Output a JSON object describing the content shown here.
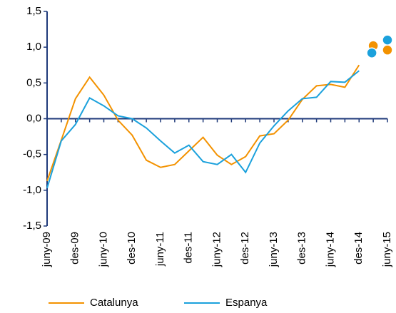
{
  "chart_data": {
    "type": "line",
    "categories": [
      "juny-09",
      null,
      "des-09",
      null,
      "juny-10",
      null,
      "des-10",
      null,
      "juny-11",
      null,
      "des-11",
      null,
      "juny-12",
      null,
      "des-12",
      null,
      "juny-13",
      null,
      "des-13",
      null,
      "juny-14",
      null,
      "des-14",
      null,
      "juny-15"
    ],
    "series": [
      {
        "name": "Catalunya",
        "color": "#f39200",
        "values": [
          -0.87,
          -0.3,
          0.28,
          0.58,
          0.33,
          -0.02,
          -0.23,
          -0.58,
          -0.68,
          -0.64,
          -0.45,
          -0.26,
          -0.51,
          -0.64,
          -0.53,
          -0.24,
          -0.21,
          -0.02,
          0.27,
          0.46,
          0.48,
          0.44,
          0.75,
          null,
          null
        ],
        "dot_values": [
          null,
          null,
          null,
          null,
          null,
          null,
          null,
          null,
          null,
          null,
          null,
          null,
          null,
          null,
          null,
          null,
          null,
          null,
          null,
          null,
          null,
          null,
          null,
          1.02,
          0.96
        ]
      },
      {
        "name": "Espanya",
        "color": "#1ba1dc",
        "values": [
          -0.97,
          -0.31,
          -0.08,
          0.29,
          0.18,
          0.04,
          0.0,
          -0.13,
          -0.31,
          -0.48,
          -0.37,
          -0.6,
          -0.64,
          -0.5,
          -0.75,
          -0.34,
          -0.1,
          0.11,
          0.28,
          0.3,
          0.52,
          0.51,
          0.67,
          null,
          null
        ],
        "dot_values": [
          null,
          null,
          null,
          null,
          null,
          null,
          null,
          null,
          null,
          null,
          null,
          null,
          null,
          null,
          null,
          null,
          null,
          null,
          null,
          null,
          null,
          null,
          null,
          0.92,
          1.1
        ]
      }
    ],
    "ylim": [
      -1.5,
      1.5
    ],
    "yticks": [
      {
        "value": -1.5,
        "label": "-1,5"
      },
      {
        "value": -1.0,
        "label": "-1,0"
      },
      {
        "value": -0.5,
        "label": "-0,5"
      },
      {
        "value": 0.0,
        "label": "0,0"
      },
      {
        "value": 0.5,
        "label": "0,5"
      },
      {
        "value": 1.0,
        "label": "1,0"
      },
      {
        "value": 1.5,
        "label": "1,5"
      }
    ],
    "axis_color": "#1f3a7a"
  }
}
